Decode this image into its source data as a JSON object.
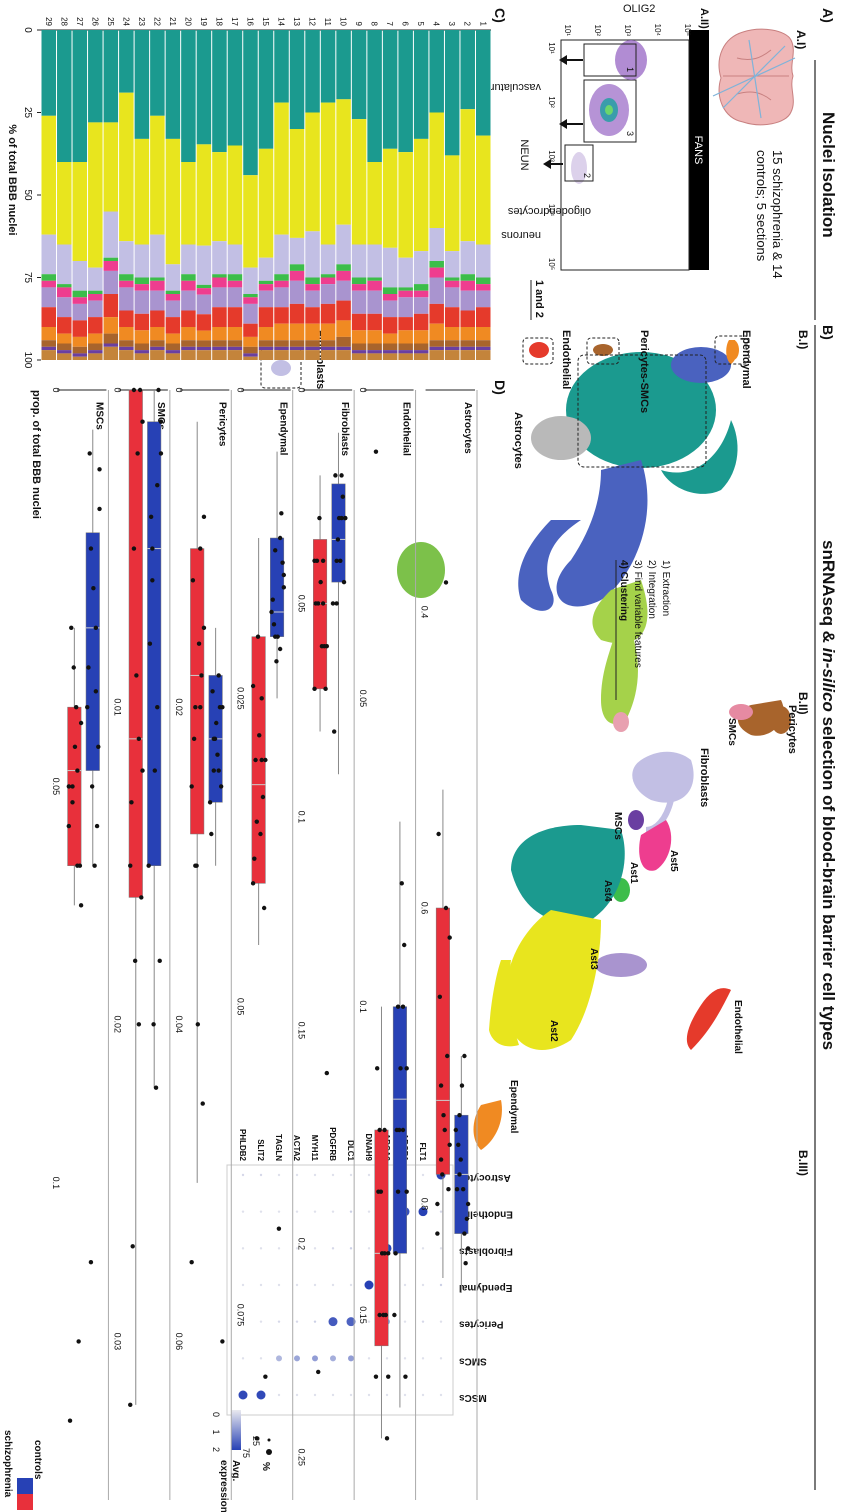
{
  "colors": {
    "astrocytes": "#1b9a8f",
    "ast2": "#e8e51e",
    "ast3": "#a994cf",
    "ast4": "#3cbd4a",
    "ast5": "#ee3d8f",
    "endothelial": "#e53a2b",
    "fibroblasts": "#c2bfe4",
    "ependymal": "#f08a22",
    "pericytes": "#a8642c",
    "smcs": "#e68aa2",
    "mscs": "#6a3fa1",
    "neuro_grey": "#b9b9b9",
    "blue_cluster": "#4a62bf",
    "green_cluster": "#7cc14a",
    "lime_cluster": "#a5d24a",
    "controls": "#2741b5",
    "schizophrenia": "#e8303b"
  },
  "panelA": {
    "header": "A)",
    "title": "Nuclei Isolation",
    "ai_label": "A.I)",
    "ai_text_line1": "15 schizophrenia & 14",
    "ai_text_line2": "controls; 5 sections",
    "aii_label": "A.II)",
    "fans": "FANS",
    "yaxis": "OLIG2",
    "xaxis": "NEUN",
    "ticks": [
      "10¹",
      "10²",
      "10³",
      "10⁴",
      "10⁵"
    ],
    "gate1": "1",
    "gate2": "2",
    "gate3": "3",
    "oligo": "oligodendrocytes",
    "neurons": "neurons",
    "vasc": "vasculature",
    "gates12": "1 and 2"
  },
  "panelB": {
    "header": "B)",
    "title_pre": "snRNAseq & ",
    "title_italic": "in-silico",
    "title_post": " selection of blood-brain barrier cell types",
    "bi_label": "B.I)",
    "bii_label": "B.II)",
    "biii_label": "B.III)",
    "steps": [
      "1)  Extraction",
      "2)  Integration",
      "3)  Find variable features",
      "4)  Clustering"
    ],
    "umap1_labels": {
      "ependymal": "Ependymal",
      "pericytes_smcs": "Pericytes-SMCs",
      "endothelial": "Endothelial",
      "fibroblasts": "Fibroblasts",
      "astrocytes": "Astrocytes"
    },
    "umap2_labels": {
      "pericytes": "Pericytes",
      "smcs": "SMCs",
      "fibroblasts": "Fibroblasts",
      "mscs": "MSCs",
      "ast5": "Ast5",
      "ast4": "Ast4",
      "ast1": "Ast1",
      "ast3": "Ast3",
      "ast2": "Ast2",
      "ependymal": "Ependymal",
      "endothelial": "Endothelial"
    },
    "dot_rows": [
      "Astrocytes",
      "Endothelial",
      "Fibroblasts",
      "Ependymal",
      "Pericytes",
      "SMCs",
      "MSCs"
    ],
    "dot_genes": [
      "GFAP",
      "FLT1",
      "ABCB1",
      "ABCA9",
      "DNAH9",
      "DLC1",
      "PDGFRB",
      "MYH11",
      "ACTA2",
      "TAGLN",
      "SLIT2",
      "PHLDB2"
    ],
    "dot_matrix": [
      [
        2.0,
        0.1,
        0.1,
        0.1,
        0.1,
        0.1,
        0.1,
        0.1,
        0.1,
        0.1,
        0.2,
        0.2
      ],
      [
        0.2,
        2.0,
        1.8,
        0.3,
        0.1,
        0.3,
        0.1,
        0.1,
        0.1,
        0.1,
        0.1,
        0.1
      ],
      [
        0.1,
        0.1,
        0.1,
        2.0,
        0.1,
        0.3,
        0.2,
        0.1,
        0.1,
        0.1,
        0.1,
        0.1
      ],
      [
        0.3,
        0.1,
        0.1,
        0.1,
        2.0,
        0.1,
        0.1,
        0.1,
        0.1,
        0.1,
        0.1,
        0.1
      ],
      [
        0.1,
        0.2,
        0.1,
        0.8,
        0.1,
        1.6,
        1.7,
        0.3,
        0.2,
        0.2,
        0.1,
        0.1
      ],
      [
        0.1,
        0.1,
        0.1,
        0.1,
        0.1,
        0.9,
        0.7,
        0.9,
        0.8,
        0.6,
        0.1,
        0.1
      ],
      [
        0.1,
        0.1,
        0.1,
        0.1,
        0.1,
        0.1,
        0.1,
        0.1,
        0.1,
        0.1,
        1.9,
        1.9
      ]
    ],
    "legend_avg": "Avg.",
    "legend_expression": "expression",
    "legend_scale": [
      "2",
      "1",
      "0"
    ],
    "legend_pct": "%",
    "legend_pct_ticks": [
      "25",
      "75"
    ]
  },
  "panelC": {
    "header": "C)",
    "ylabel": "% of total BBB nuclei",
    "yticks": [
      "0",
      "25",
      "50",
      "75",
      "100"
    ],
    "n_samples": 29
  },
  "panelD": {
    "header": "D)",
    "ylabel": "prop. of total BBB nuclei",
    "legend": {
      "controls": "controls",
      "schizophrenia": "schizophrenia"
    }
  },
  "chart_data": [
    {
      "type": "bar",
      "stacked": true,
      "title": "",
      "ylabel": "% of total BBB nuclei",
      "ylim": [
        0,
        100
      ],
      "categories": [
        "1",
        "2",
        "3",
        "4",
        "5",
        "6",
        "7",
        "8",
        "9",
        "10",
        "11",
        "12",
        "13",
        "14",
        "15",
        "16",
        "17",
        "18",
        "19",
        "20",
        "21",
        "22",
        "23",
        "24",
        "25",
        "26",
        "27",
        "28",
        "29"
      ],
      "series": [
        {
          "values": [
            32,
            24,
            38,
            25,
            33,
            37,
            36,
            40,
            27,
            21,
            22,
            25,
            30,
            22,
            36,
            44,
            35,
            37,
            35,
            40,
            33,
            26,
            33,
            19,
            28,
            28,
            40,
            40,
            26
          ]
        },
        {
          "values": [
            33,
            40,
            29,
            35,
            34,
            32,
            30,
            25,
            38,
            38,
            43,
            36,
            33,
            40,
            33,
            28,
            30,
            27,
            31,
            25,
            38,
            36,
            32,
            45,
            27,
            44,
            30,
            25,
            36
          ]
        },
        {
          "values": [
            10,
            10,
            8,
            10,
            10,
            9,
            12,
            10,
            10,
            12,
            9,
            14,
            8,
            12,
            7,
            8,
            9,
            10,
            12,
            9,
            8,
            13,
            10,
            10,
            14,
            7,
            9,
            12,
            12
          ]
        },
        {
          "values": [
            2,
            2,
            1,
            2,
            2,
            1,
            2,
            1,
            2,
            2,
            1,
            2,
            2,
            2,
            1,
            1,
            2,
            1,
            1,
            2,
            1,
            1,
            2,
            2,
            1,
            1,
            2,
            1,
            2
          ]
        },
        {
          "values": [
            2,
            3,
            2,
            3,
            2,
            2,
            2,
            3,
            2,
            3,
            2,
            2,
            3,
            2,
            2,
            2,
            2,
            3,
            2,
            3,
            2,
            3,
            2,
            2,
            3,
            2,
            2,
            3,
            2
          ]
        },
        {
          "values": [
            5,
            6,
            6,
            8,
            5,
            6,
            5,
            7,
            7,
            6,
            6,
            5,
            7,
            6,
            5,
            6,
            6,
            6,
            6,
            6,
            5,
            6,
            7,
            7,
            7,
            5,
            5,
            6,
            6
          ]
        },
        {
          "values": [
            6,
            5,
            6,
            6,
            5,
            4,
            5,
            5,
            5,
            6,
            6,
            5,
            6,
            5,
            6,
            4,
            6,
            6,
            5,
            5,
            5,
            5,
            5,
            5,
            7,
            5,
            5,
            5,
            6
          ]
        },
        {
          "values": [
            4,
            4,
            4,
            5,
            4,
            4,
            3,
            4,
            4,
            5,
            5,
            5,
            5,
            5,
            4,
            3,
            4,
            4,
            3,
            4,
            3,
            4,
            4,
            4,
            5,
            3,
            3,
            3,
            4
          ]
        },
        {
          "values": [
            2,
            2,
            2,
            2,
            2,
            2,
            2,
            2,
            2,
            3,
            2,
            2,
            2,
            2,
            2,
            2,
            2,
            2,
            2,
            2,
            2,
            2,
            2,
            2,
            3,
            2,
            2,
            2,
            2
          ]
        },
        {
          "values": [
            1,
            1,
            1,
            1,
            1,
            1,
            1,
            1,
            1,
            1,
            1,
            1,
            1,
            1,
            1,
            1,
            1,
            1,
            1,
            1,
            1,
            1,
            1,
            1,
            1,
            1,
            1,
            1,
            1
          ]
        },
        {
          "values": [
            3,
            3,
            3,
            3,
            2,
            2,
            2,
            2,
            2,
            3,
            3,
            3,
            3,
            3,
            3,
            1,
            3,
            3,
            3,
            3,
            2,
            3,
            2,
            3,
            4,
            2,
            1,
            2,
            3
          ]
        }
      ]
    },
    {
      "type": "box",
      "ylabel": "prop. of total BBB nuclei",
      "groups": [
        "controls",
        "schizophrenia"
      ],
      "panels": [
        {
          "title": "Astrocytes",
          "yticks": [
            0.4,
            0.6,
            0.8
          ],
          "ylim": [
            0.25,
            1.0
          ],
          "controls": {
            "q1": 0.74,
            "median": 0.78,
            "q3": 0.82,
            "min": 0.7,
            "max": 0.86,
            "points": [
              0.8,
              0.78,
              0.82,
              0.75,
              0.77,
              0.84,
              0.79,
              0.72,
              0.81,
              0.76,
              0.79,
              0.83,
              0.74,
              0.7
            ]
          },
          "schizophrenia": {
            "q1": 0.6,
            "median": 0.73,
            "q3": 0.78,
            "min": 0.52,
            "max": 0.85,
            "points": [
              0.76,
              0.72,
              0.6,
              0.82,
              0.78,
              0.7,
              0.55,
              0.74,
              0.79,
              0.66,
              0.75,
              0.62,
              0.77,
              0.38,
              0.8
            ]
          }
        },
        {
          "title": "Endothelial",
          "yticks": [
            0.0,
            0.05,
            0.1,
            0.15
          ],
          "ylim": [
            0,
            0.18
          ],
          "controls": {
            "q1": 0.1,
            "median": 0.115,
            "q3": 0.14,
            "min": 0.07,
            "max": 0.165,
            "points": [
              0.11,
              0.13,
              0.1,
              0.15,
              0.12,
              0.09,
              0.14,
              0.11,
              0.16,
              0.12,
              0.08,
              0.13,
              0.1,
              0.12
            ]
          },
          "schizophrenia": {
            "q1": 0.12,
            "median": 0.14,
            "q3": 0.155,
            "min": 0.1,
            "max": 0.17,
            "points": [
              0.14,
              0.15,
              0.12,
              0.16,
              0.13,
              0.15,
              0.11,
              0.14,
              0.17,
              0.13,
              0.15,
              0.16,
              0.12,
              0.14,
              0.01
            ]
          }
        },
        {
          "title": "Fibroblasts",
          "yticks": [
            0.0,
            0.05,
            0.1,
            0.15,
            0.2,
            0.25
          ],
          "ylim": [
            0,
            0.26
          ],
          "controls": {
            "q1": 0.022,
            "median": 0.035,
            "q3": 0.045,
            "min": 0.01,
            "max": 0.09,
            "points": [
              0.03,
              0.04,
              0.02,
              0.05,
              0.035,
              0.025,
              0.08,
              0.03,
              0.045,
              0.02,
              0.04,
              0.03,
              0.05,
              0.03
            ]
          },
          "schizophrenia": {
            "q1": 0.035,
            "median": 0.05,
            "q3": 0.07,
            "min": 0.02,
            "max": 0.08,
            "points": [
              0.06,
              0.05,
              0.04,
              0.07,
              0.03,
              0.06,
              0.05,
              0.045,
              0.07,
              0.04,
              0.06,
              0.16,
              0.23,
              0.05,
              0.04
            ]
          }
        },
        {
          "title": "Ependymal",
          "yticks": [
            0.0,
            0.025,
            0.05,
            0.075
          ],
          "ylim": [
            0,
            0.09
          ],
          "controls": {
            "q1": 0.012,
            "median": 0.018,
            "q3": 0.02,
            "min": 0.005,
            "max": 0.025,
            "points": [
              0.015,
              0.02,
              0.012,
              0.018,
              0.022,
              0.01,
              0.017,
              0.02,
              0.014,
              0.019,
              0.068,
              0.016,
              0.013,
              0.021
            ]
          },
          "schizophrenia": {
            "q1": 0.02,
            "median": 0.032,
            "q3": 0.04,
            "min": 0.012,
            "max": 0.045,
            "points": [
              0.03,
              0.035,
              0.025,
              0.04,
              0.02,
              0.033,
              0.038,
              0.028,
              0.042,
              0.03,
              0.036,
              0.08,
              0.085,
              0.03,
              0.024
            ]
          }
        },
        {
          "title": "Pericytes",
          "yticks": [
            0.0,
            0.02,
            0.04,
            0.06
          ],
          "ylim": [
            0,
            0.07
          ],
          "controls": {
            "q1": 0.018,
            "median": 0.022,
            "q3": 0.026,
            "min": 0.015,
            "max": 0.03,
            "points": [
              0.02,
              0.024,
              0.018,
              0.026,
              0.022,
              0.02,
              0.028,
              0.021,
              0.025,
              0.019,
              0.023,
              0.06,
              0.022,
              0.024
            ]
          },
          "schizophrenia": {
            "q1": 0.01,
            "median": 0.018,
            "q3": 0.028,
            "min": 0.002,
            "max": 0.05,
            "points": [
              0.015,
              0.02,
              0.01,
              0.025,
              0.03,
              0.018,
              0.012,
              0.04,
              0.045,
              0.022,
              0.016,
              0.008,
              0.03,
              0.02,
              0.055
            ]
          }
        },
        {
          "title": "SMCs",
          "yticks": [
            0.0,
            0.01,
            0.02,
            0.03
          ],
          "ylim": [
            0,
            0.035
          ],
          "controls": {
            "q1": 0.001,
            "median": 0.005,
            "q3": 0.015,
            "min": 0.0,
            "max": 0.022,
            "points": [
              0.002,
              0.005,
              0.01,
              0.015,
              0.02,
              0.0,
              0.008,
              0.012,
              0.018,
              0.004,
              0.022,
              0.001,
              0.006,
              0.003
            ]
          },
          "schizophrenia": {
            "q1": 0.0,
            "median": 0.011,
            "q3": 0.016,
            "min": 0.0,
            "max": 0.032,
            "points": [
              0.001,
              0.005,
              0.011,
              0.015,
              0.018,
              0.0,
              0.013,
              0.009,
              0.016,
              0.027,
              0.002,
              0.012,
              0.0,
              0.02,
              0.032
            ]
          }
        },
        {
          "title": "MSCs",
          "yticks": [
            0.0,
            0.05,
            0.1
          ],
          "ylim": [
            0,
            0.14
          ],
          "controls": {
            "q1": 0.018,
            "median": 0.03,
            "q3": 0.048,
            "min": 0.005,
            "max": 0.06,
            "points": [
              0.01,
              0.02,
              0.03,
              0.04,
              0.05,
              0.055,
              0.035,
              0.025,
              0.045,
              0.008,
              0.06,
              0.015,
              0.11,
              0.038
            ]
          },
          "schizophrenia": {
            "q1": 0.04,
            "median": 0.048,
            "q3": 0.06,
            "min": 0.03,
            "max": 0.065,
            "points": [
              0.042,
              0.05,
              0.06,
              0.055,
              0.035,
              0.12,
              0.13,
              0.045,
              0.06,
              0.03,
              0.04,
              0.065,
              0.052,
              0.048,
              0.05
            ]
          }
        }
      ]
    }
  ]
}
